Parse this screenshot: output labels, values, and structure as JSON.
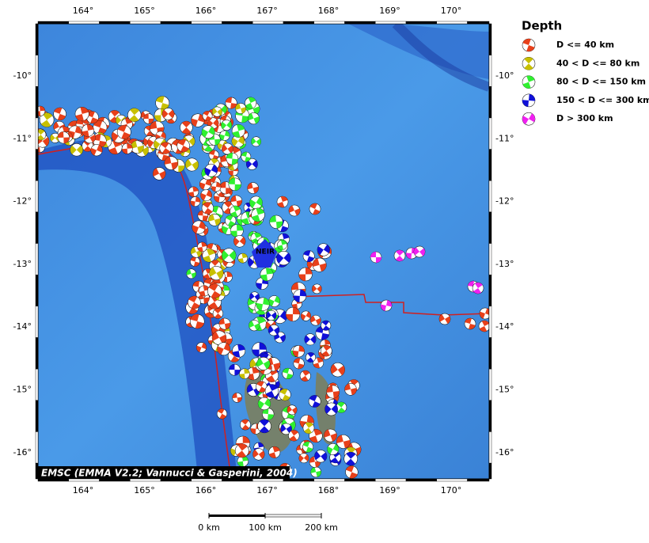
{
  "map": {
    "lon_labels": [
      "164°",
      "165°",
      "166°",
      "167°",
      "168°",
      "169°",
      "170°"
    ],
    "lat_labels": [
      "-10°",
      "-11°",
      "-12°",
      "-13°",
      "-14°",
      "-15°",
      "-16°"
    ],
    "legend": {
      "title": "Depth",
      "entries": [
        "D <= 40 km",
        "40 < D <= 80 km",
        "80 < D <= 150 km",
        "150 < D <= 300 km",
        "D > 300 km"
      ]
    },
    "station": "NEIR",
    "credit": "EMSC (EMMA V2.2; Vannucci & Gasperini, 2004)",
    "scale_labels": [
      "0 km",
      "100 km",
      "200 km"
    ]
  }
}
